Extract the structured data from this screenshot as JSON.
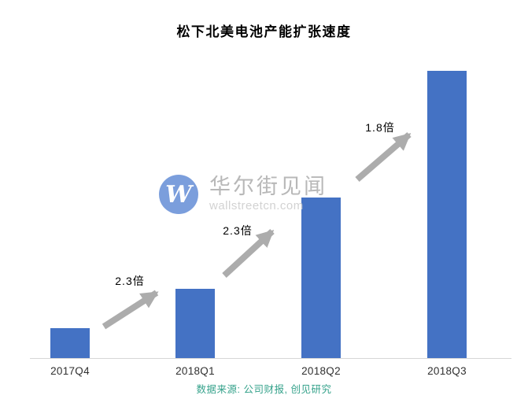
{
  "chart_data": {
    "type": "bar",
    "title": "松下北美电池产能扩张速度",
    "categories": [
      "2017Q4",
      "2018Q1",
      "2018Q2",
      "2018Q3"
    ],
    "values": [
      1,
      2.3,
      5.3,
      9.5
    ],
    "ylim": [
      0,
      10
    ],
    "grid": false,
    "legend": "none",
    "annotations": [
      {
        "label": "2.3倍",
        "from": "2017Q4",
        "to": "2018Q1"
      },
      {
        "label": "2.3倍",
        "from": "2018Q1",
        "to": "2018Q2"
      },
      {
        "label": "1.8倍",
        "from": "2018Q2",
        "to": "2018Q3"
      }
    ],
    "source": "数据来源: 公司财报, 创见研究"
  },
  "watermark": {
    "logo_letter": "W",
    "name": "华尔街见闻",
    "domain": "wallstreetcn.com"
  },
  "colors": {
    "bar": "#4472C4",
    "arrow": "#acacac",
    "source_text": "#35a28b",
    "watermark_logo": "#5f89d5"
  }
}
